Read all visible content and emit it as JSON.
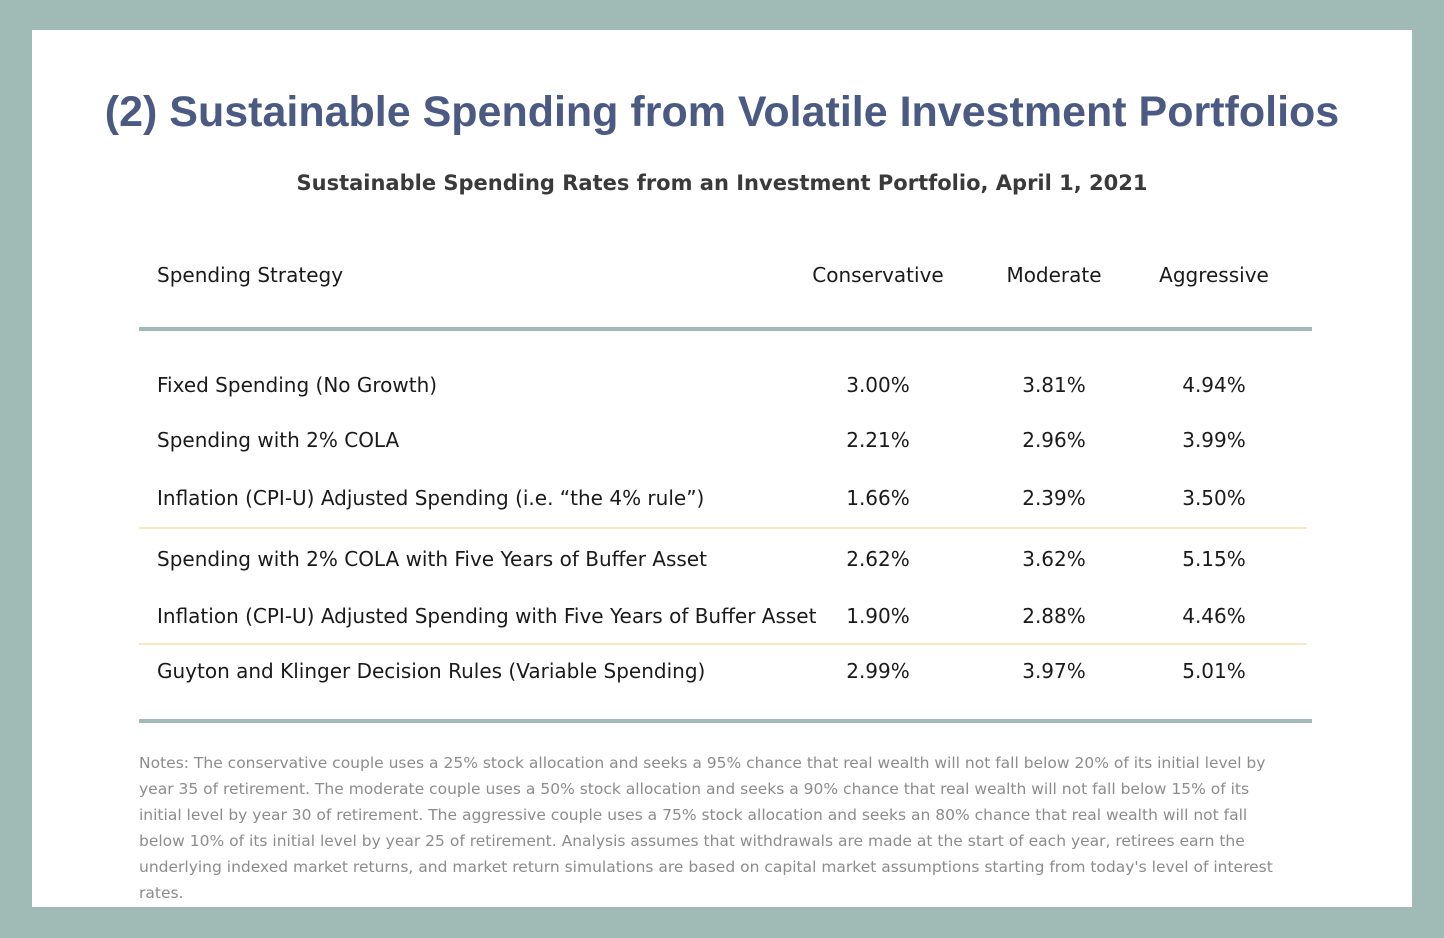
{
  "title": "(2) Sustainable Spending from Volatile Investment Portfolios",
  "subtitle": "Sustainable Spending Rates from an Investment Portfolio, April 1, 2021",
  "chart_data": {
    "type": "table",
    "columns": [
      "Spending Strategy",
      "Conservative",
      "Moderate",
      "Aggressive"
    ],
    "rows": [
      {
        "label": "Fixed Spending (No Growth)",
        "values": [
          "3.00%",
          "3.81%",
          "4.94%"
        ]
      },
      {
        "label": "Spending with 2% COLA",
        "values": [
          "2.21%",
          "2.96%",
          "3.99%"
        ]
      },
      {
        "label": "Inflation (CPI-U) Adjusted Spending (i.e. “the 4% rule”)",
        "values": [
          "1.66%",
          "2.39%",
          "3.50%"
        ]
      },
      {
        "label": "Spending with 2% COLA with Five Years of Buffer Asset",
        "values": [
          "2.62%",
          "3.62%",
          "5.15%"
        ]
      },
      {
        "label": "Inflation (CPI-U) Adjusted Spending with Five Years of Buffer Asset",
        "values": [
          "1.90%",
          "2.88%",
          "4.46%"
        ]
      },
      {
        "label": "Guyton and Klinger Decision Rules (Variable Spending)",
        "values": [
          "2.99%",
          "3.97%",
          "5.01%"
        ]
      }
    ]
  },
  "notes": "Notes: The conservative couple uses a 25% stock allocation and seeks a 95% chance that real wealth will not fall below 20% of its initial level by year 35 of retirement. The moderate couple uses a 50% stock allocation and seeks a 90% chance that real wealth will not fall below 15% of its initial level by year 30 of retirement. The aggressive couple uses a 75% stock allocation and seeks an 80% chance that real wealth will not fall below 10% of its initial level by year 25 of retirement. Analysis assumes that withdrawals are made at the start of each year, retirees earn the underlying indexed market returns, and market return simulations are based on capital market assumptions starting from today's level of interest rates.",
  "colors": {
    "frame": "#a0bab5",
    "title": "#4b5a82",
    "group_divider": "#fbe6c4"
  }
}
